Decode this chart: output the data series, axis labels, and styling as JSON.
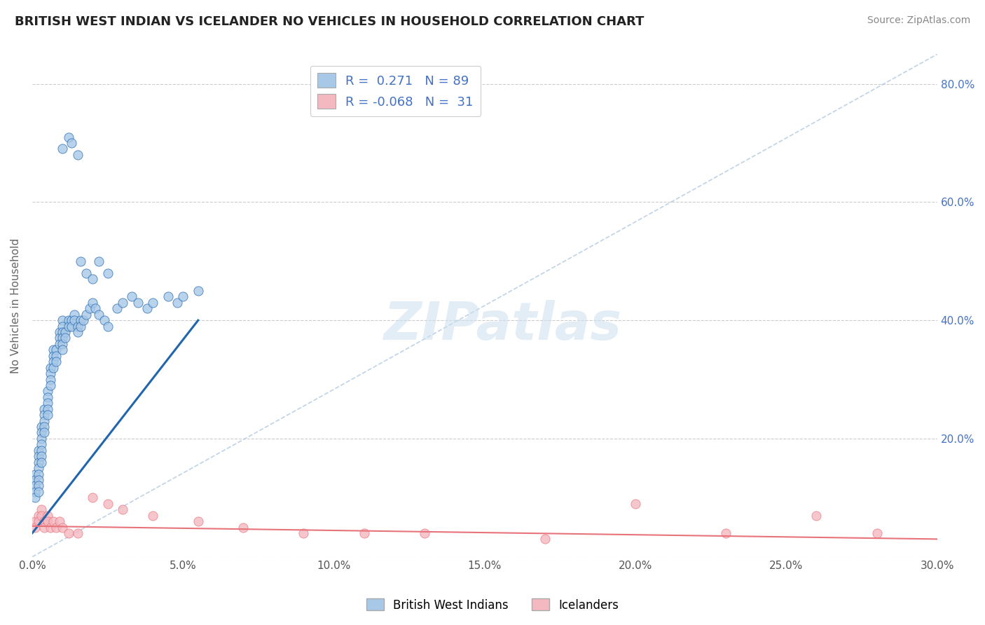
{
  "title": "BRITISH WEST INDIAN VS ICELANDER NO VEHICLES IN HOUSEHOLD CORRELATION CHART",
  "source_text": "Source: ZipAtlas.com",
  "ylabel": "No Vehicles in Household",
  "xmin": 0.0,
  "xmax": 0.3,
  "ymin": 0.0,
  "ymax": 0.85,
  "x_tick_labels": [
    "0.0%",
    "5.0%",
    "10.0%",
    "15.0%",
    "20.0%",
    "25.0%",
    "30.0%"
  ],
  "x_tick_vals": [
    0.0,
    0.05,
    0.1,
    0.15,
    0.2,
    0.25,
    0.3
  ],
  "y_tick_labels": [
    "",
    "20.0%",
    "40.0%",
    "60.0%",
    "80.0%"
  ],
  "y_tick_vals": [
    0.0,
    0.2,
    0.4,
    0.6,
    0.8
  ],
  "legend_label1": "British West Indians",
  "legend_label2": "Icelanders",
  "r1": 0.271,
  "n1": 89,
  "r2": -0.068,
  "n2": 31,
  "color1": "#a8c8e8",
  "color2": "#f4b8c1",
  "line_color1": "#2166ac",
  "line_color2": "#e8737a",
  "watermark": "ZIPatlas",
  "background_color": "#ffffff",
  "scatter1_x": [
    0.001,
    0.001,
    0.001,
    0.001,
    0.001,
    0.002,
    0.002,
    0.002,
    0.002,
    0.002,
    0.002,
    0.002,
    0.002,
    0.003,
    0.003,
    0.003,
    0.003,
    0.003,
    0.003,
    0.003,
    0.004,
    0.004,
    0.004,
    0.004,
    0.004,
    0.005,
    0.005,
    0.005,
    0.005,
    0.005,
    0.006,
    0.006,
    0.006,
    0.006,
    0.007,
    0.007,
    0.007,
    0.007,
    0.008,
    0.008,
    0.008,
    0.009,
    0.009,
    0.009,
    0.01,
    0.01,
    0.01,
    0.01,
    0.01,
    0.01,
    0.011,
    0.011,
    0.012,
    0.012,
    0.013,
    0.013,
    0.014,
    0.014,
    0.015,
    0.015,
    0.016,
    0.016,
    0.017,
    0.018,
    0.019,
    0.02,
    0.021,
    0.022,
    0.024,
    0.025,
    0.028,
    0.03,
    0.033,
    0.035,
    0.038,
    0.04,
    0.045,
    0.048,
    0.05,
    0.055,
    0.01,
    0.012,
    0.013,
    0.015,
    0.016,
    0.018,
    0.02,
    0.022,
    0.025
  ],
  "scatter1_y": [
    0.14,
    0.13,
    0.12,
    0.11,
    0.1,
    0.18,
    0.17,
    0.16,
    0.15,
    0.14,
    0.13,
    0.12,
    0.11,
    0.22,
    0.21,
    0.2,
    0.19,
    0.18,
    0.17,
    0.16,
    0.25,
    0.24,
    0.23,
    0.22,
    0.21,
    0.28,
    0.27,
    0.26,
    0.25,
    0.24,
    0.32,
    0.31,
    0.3,
    0.29,
    0.35,
    0.34,
    0.33,
    0.32,
    0.35,
    0.34,
    0.33,
    0.38,
    0.37,
    0.36,
    0.4,
    0.39,
    0.38,
    0.37,
    0.36,
    0.35,
    0.38,
    0.37,
    0.4,
    0.39,
    0.4,
    0.39,
    0.41,
    0.4,
    0.39,
    0.38,
    0.4,
    0.39,
    0.4,
    0.41,
    0.42,
    0.43,
    0.42,
    0.41,
    0.4,
    0.39,
    0.42,
    0.43,
    0.44,
    0.43,
    0.42,
    0.43,
    0.44,
    0.43,
    0.44,
    0.45,
    0.69,
    0.71,
    0.7,
    0.68,
    0.5,
    0.48,
    0.47,
    0.5,
    0.48
  ],
  "scatter2_x": [
    0.001,
    0.001,
    0.002,
    0.002,
    0.003,
    0.003,
    0.004,
    0.004,
    0.005,
    0.005,
    0.006,
    0.007,
    0.008,
    0.009,
    0.01,
    0.012,
    0.015,
    0.02,
    0.025,
    0.03,
    0.04,
    0.055,
    0.07,
    0.09,
    0.11,
    0.13,
    0.17,
    0.2,
    0.23,
    0.26,
    0.28
  ],
  "scatter2_y": [
    0.06,
    0.05,
    0.07,
    0.06,
    0.08,
    0.07,
    0.06,
    0.05,
    0.07,
    0.06,
    0.05,
    0.06,
    0.05,
    0.06,
    0.05,
    0.04,
    0.04,
    0.1,
    0.09,
    0.08,
    0.07,
    0.06,
    0.05,
    0.04,
    0.04,
    0.04,
    0.03,
    0.09,
    0.04,
    0.07,
    0.04
  ]
}
